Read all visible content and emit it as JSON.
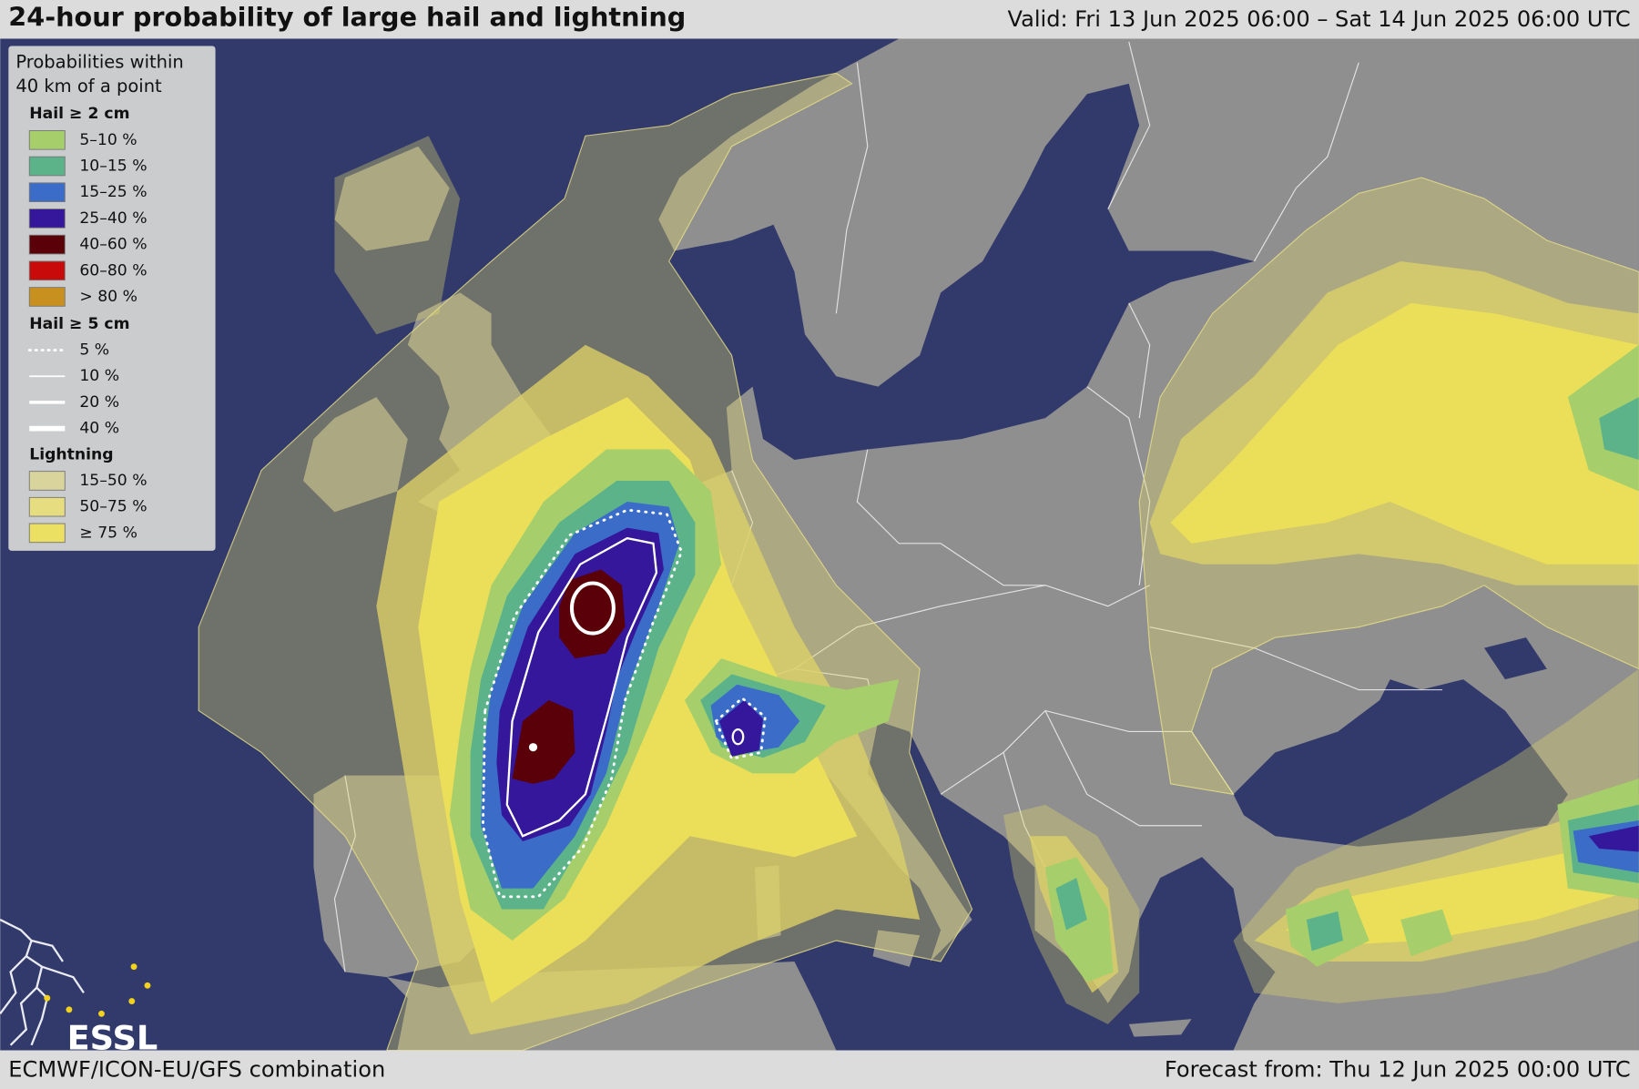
{
  "header": {
    "title": "24-hour probability of large hail and lightning",
    "valid": "Valid: Fri 13 Jun 2025 06:00 – Sat 14 Jun 2025 06:00 UTC"
  },
  "legend": {
    "title_lines": [
      "Probabilities within",
      "40 km of a point"
    ],
    "hail_2cm": {
      "heading": "Hail ≥ 2 cm",
      "items": [
        {
          "label": "5–10 %",
          "color": "#a6cf6b"
        },
        {
          "label": "10–15 %",
          "color": "#5cb38a"
        },
        {
          "label": "15–25 %",
          "color": "#3a6cc8"
        },
        {
          "label": "25–40 %",
          "color": "#34179a"
        },
        {
          "label": "40–60 %",
          "color": "#5a0008"
        },
        {
          "label": "60–80 %",
          "color": "#c80a0a"
        },
        {
          "label": "> 80 %",
          "color": "#c8901e"
        }
      ]
    },
    "hail_5cm": {
      "heading": "Hail ≥ 5 cm",
      "items": [
        {
          "label": "5 %"
        },
        {
          "label": "10 %"
        },
        {
          "label": "20 %"
        },
        {
          "label": "40 %"
        }
      ]
    },
    "lightning": {
      "heading": "Lightning",
      "items": [
        {
          "label": "15–50 %",
          "color": "#d9d49b"
        },
        {
          "label": "50–75 %",
          "color": "#e5dd80"
        },
        {
          "label": "≥ 75 %",
          "color": "#ebe062"
        }
      ]
    }
  },
  "logo": "ESSL",
  "footer": {
    "source": "ECMWF/ICON-EU/GFS combination",
    "issued": "Forecast from: Thu 12 Jun 2025 00:00 UTC"
  }
}
